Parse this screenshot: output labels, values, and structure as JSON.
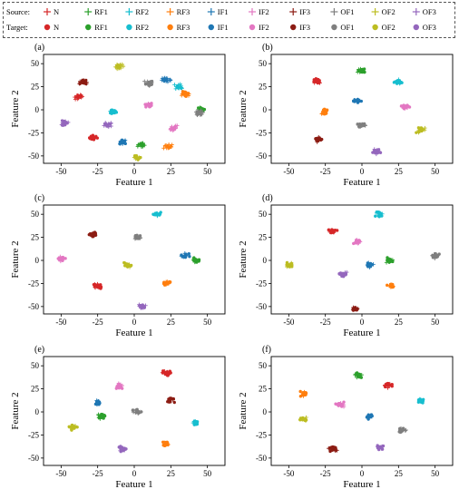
{
  "legend": {
    "source_label": "Source:",
    "target_label": "Target:",
    "classes": [
      "N",
      "RF1",
      "RF2",
      "RF3",
      "IF1",
      "IF2",
      "IF3",
      "OF1",
      "OF2",
      "OF3"
    ],
    "colors": [
      "#d62728",
      "#2ca02c",
      "#17becf",
      "#ff7f0e",
      "#1f77b4",
      "#e377c2",
      "#8c1c13",
      "#7f7f7f",
      "#bcbd22",
      "#9467bd"
    ]
  },
  "chart_data": [
    {
      "type": "scatter",
      "panel": "(a)",
      "xlabel": "Feature 1",
      "ylabel": "Feature 2",
      "xticks": [
        -50,
        -25,
        0,
        25,
        50
      ],
      "yticks": [
        -50,
        -25,
        0,
        25,
        50
      ],
      "xlim": [
        -62,
        62
      ],
      "ylim": [
        -58,
        60
      ],
      "clusters": [
        {
          "class": "N",
          "domain": "target",
          "x": -28,
          "y": -30
        },
        {
          "class": "N",
          "domain": "source",
          "x": -38,
          "y": 14
        },
        {
          "class": "RF1",
          "domain": "target",
          "x": 45,
          "y": 0
        },
        {
          "class": "RF1",
          "domain": "source",
          "x": 5,
          "y": -38
        },
        {
          "class": "RF2",
          "domain": "target",
          "x": -15,
          "y": -2
        },
        {
          "class": "RF2",
          "domain": "source",
          "x": 30,
          "y": 25
        },
        {
          "class": "RF3",
          "domain": "source",
          "x": 23,
          "y": -40
        },
        {
          "class": "RF3",
          "domain": "target",
          "x": 35,
          "y": 17
        },
        {
          "class": "IF1",
          "domain": "target",
          "x": -8,
          "y": -35
        },
        {
          "class": "IF1",
          "domain": "source",
          "x": 22,
          "y": 32
        },
        {
          "class": "IF2",
          "domain": "target",
          "x": 10,
          "y": 5
        },
        {
          "class": "IF2",
          "domain": "source",
          "x": 27,
          "y": -20
        },
        {
          "class": "IF3",
          "domain": "target",
          "x": -35,
          "y": 30
        },
        {
          "class": "OF1",
          "domain": "target",
          "x": 10,
          "y": 28
        },
        {
          "class": "OF1",
          "domain": "source",
          "x": 45,
          "y": -3
        },
        {
          "class": "OF2",
          "domain": "target",
          "x": 2,
          "y": -52
        },
        {
          "class": "OF2",
          "domain": "source",
          "x": -10,
          "y": 47
        },
        {
          "class": "OF3",
          "domain": "target",
          "x": -48,
          "y": -14
        },
        {
          "class": "OF3",
          "domain": "source",
          "x": -18,
          "y": -16
        }
      ]
    },
    {
      "type": "scatter",
      "panel": "(b)",
      "xlabel": "Feature 1",
      "ylabel": "Feature 2",
      "xticks": [
        -50,
        -25,
        0,
        25,
        50
      ],
      "yticks": [
        -50,
        -25,
        0,
        25,
        50
      ],
      "xlim": [
        -62,
        62
      ],
      "ylim": [
        -58,
        60
      ],
      "clusters": [
        {
          "class": "N",
          "domain": "target",
          "x": -30,
          "y": 31
        },
        {
          "class": "RF1",
          "domain": "target",
          "x": 0,
          "y": 43
        },
        {
          "class": "RF2",
          "domain": "target",
          "x": 25,
          "y": 30
        },
        {
          "class": "RF3",
          "domain": "target",
          "x": -25,
          "y": -2
        },
        {
          "class": "IF1",
          "domain": "target",
          "x": -3,
          "y": 10
        },
        {
          "class": "IF2",
          "domain": "target",
          "x": 30,
          "y": 3
        },
        {
          "class": "IF3",
          "domain": "target",
          "x": -30,
          "y": -32
        },
        {
          "class": "OF1",
          "domain": "target",
          "x": 0,
          "y": -17
        },
        {
          "class": "OF2",
          "domain": "target",
          "x": 40,
          "y": -22
        },
        {
          "class": "OF3",
          "domain": "target",
          "x": 10,
          "y": -45
        }
      ]
    },
    {
      "type": "scatter",
      "panel": "(c)",
      "xlabel": "Feature 1",
      "ylabel": "Feature 2",
      "xticks": [
        -50,
        -25,
        0,
        25,
        50
      ],
      "yticks": [
        -50,
        -25,
        0,
        25,
        50
      ],
      "xlim": [
        -62,
        62
      ],
      "ylim": [
        -58,
        60
      ],
      "clusters": [
        {
          "class": "N",
          "domain": "target",
          "x": -25,
          "y": -28
        },
        {
          "class": "RF1",
          "domain": "target",
          "x": 42,
          "y": 0
        },
        {
          "class": "RF2",
          "domain": "target",
          "x": 15,
          "y": 50
        },
        {
          "class": "RF3",
          "domain": "target",
          "x": 22,
          "y": -25
        },
        {
          "class": "IF1",
          "domain": "target",
          "x": 35,
          "y": 5
        },
        {
          "class": "IF2",
          "domain": "target",
          "x": -50,
          "y": 2
        },
        {
          "class": "IF3",
          "domain": "target",
          "x": -28,
          "y": 28
        },
        {
          "class": "OF1",
          "domain": "target",
          "x": 2,
          "y": 25
        },
        {
          "class": "OF2",
          "domain": "target",
          "x": -5,
          "y": -5
        },
        {
          "class": "OF3",
          "domain": "target",
          "x": 5,
          "y": -50
        }
      ]
    },
    {
      "type": "scatter",
      "panel": "(d)",
      "xlabel": "Feature 1",
      "ylabel": "Feature 2",
      "xticks": [
        -50,
        -25,
        0,
        25,
        50
      ],
      "yticks": [
        -50,
        -25,
        0,
        25,
        50
      ],
      "xlim": [
        -62,
        62
      ],
      "ylim": [
        -58,
        60
      ],
      "clusters": [
        {
          "class": "N",
          "domain": "target",
          "x": -20,
          "y": 32
        },
        {
          "class": "RF1",
          "domain": "target",
          "x": 18,
          "y": 0
        },
        {
          "class": "RF2",
          "domain": "target",
          "x": 12,
          "y": 50
        },
        {
          "class": "RF3",
          "domain": "target",
          "x": 20,
          "y": -28
        },
        {
          "class": "IF1",
          "domain": "target",
          "x": 5,
          "y": -5
        },
        {
          "class": "IF2",
          "domain": "target",
          "x": -3,
          "y": 20
        },
        {
          "class": "IF3",
          "domain": "target",
          "x": -5,
          "y": -52
        },
        {
          "class": "OF1",
          "domain": "target",
          "x": 50,
          "y": 5
        },
        {
          "class": "OF2",
          "domain": "target",
          "x": -50,
          "y": -5
        },
        {
          "class": "OF3",
          "domain": "target",
          "x": -13,
          "y": -15
        }
      ]
    },
    {
      "type": "scatter",
      "panel": "(e)",
      "xlabel": "Feature 1",
      "ylabel": "Feature 2",
      "xticks": [
        -50,
        -25,
        0,
        25,
        50
      ],
      "yticks": [
        -50,
        -25,
        0,
        25,
        50
      ],
      "xlim": [
        -62,
        62
      ],
      "ylim": [
        -58,
        60
      ],
      "clusters": [
        {
          "class": "N",
          "domain": "target",
          "x": 22,
          "y": 42
        },
        {
          "class": "RF1",
          "domain": "target",
          "x": -22,
          "y": -5
        },
        {
          "class": "RF2",
          "domain": "target",
          "x": 42,
          "y": -12
        },
        {
          "class": "RF3",
          "domain": "target",
          "x": 22,
          "y": -35
        },
        {
          "class": "IF1",
          "domain": "target",
          "x": -25,
          "y": 10
        },
        {
          "class": "IF2",
          "domain": "target",
          "x": -10,
          "y": 28
        },
        {
          "class": "IF3",
          "domain": "target",
          "x": 25,
          "y": 13
        },
        {
          "class": "OF1",
          "domain": "target",
          "x": 2,
          "y": 0
        },
        {
          "class": "OF2",
          "domain": "target",
          "x": -42,
          "y": -17
        },
        {
          "class": "OF3",
          "domain": "target",
          "x": -8,
          "y": -40
        }
      ]
    },
    {
      "type": "scatter",
      "panel": "(f)",
      "xlabel": "Feature 1",
      "ylabel": "Feature 2",
      "xticks": [
        -50,
        -25,
        0,
        25,
        50
      ],
      "yticks": [
        -50,
        -25,
        0,
        25,
        50
      ],
      "xlim": [
        -62,
        62
      ],
      "ylim": [
        -58,
        60
      ],
      "clusters": [
        {
          "class": "N",
          "domain": "target",
          "x": 18,
          "y": 29
        },
        {
          "class": "RF1",
          "domain": "target",
          "x": -2,
          "y": 40
        },
        {
          "class": "RF2",
          "domain": "target",
          "x": 40,
          "y": 12
        },
        {
          "class": "RF3",
          "domain": "target",
          "x": -40,
          "y": 20
        },
        {
          "class": "IF1",
          "domain": "target",
          "x": 5,
          "y": -5
        },
        {
          "class": "IF2",
          "domain": "target",
          "x": -15,
          "y": 8
        },
        {
          "class": "IF3",
          "domain": "target",
          "x": -20,
          "y": -40
        },
        {
          "class": "OF1",
          "domain": "target",
          "x": 28,
          "y": -20
        },
        {
          "class": "OF2",
          "domain": "target",
          "x": -40,
          "y": -8
        },
        {
          "class": "OF3",
          "domain": "target",
          "x": 12,
          "y": -38
        }
      ]
    }
  ]
}
